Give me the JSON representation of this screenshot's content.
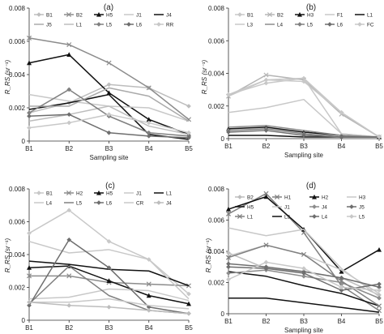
{
  "figure": {
    "x_axis_label": "Sampling site",
    "y_axis_label": "R_RS (sr⁻¹)"
  },
  "chart_data": [
    {
      "panel": "(a)",
      "type": "line",
      "categories": [
        "B1",
        "B2",
        "B3",
        "B4",
        "B5"
      ],
      "xlabel": "Sampling site",
      "ylabel": "R_RS (sr⁻¹)",
      "ylim": [
        0,
        0.008
      ],
      "yticks": [
        "0",
        "0.002",
        "0.004",
        "0.006",
        "0.008"
      ],
      "legend_placement": "top",
      "series": [
        {
          "name": "B1",
          "values": [
            0.0017,
            0.0023,
            0.0034,
            0.0032,
            0.0021
          ],
          "color": "#bdbdbd",
          "marker": "diamond"
        },
        {
          "name": "B2",
          "values": [
            0.0062,
            0.0058,
            0.0047,
            0.0032,
            0.0013
          ],
          "color": "#8c8c8c",
          "marker": "x"
        },
        {
          "name": "H5",
          "values": [
            0.0047,
            0.0052,
            0.0029,
            0.0013,
            0.0004
          ],
          "color": "#111111",
          "marker": "triangle"
        },
        {
          "name": "J1",
          "values": [
            0.0028,
            0.0024,
            0.0021,
            0.002,
            0.0012
          ],
          "color": "#c8c8c8",
          "marker": "none"
        },
        {
          "name": "J4",
          "values": [
            0.0019,
            0.0023,
            0.0028,
            0.0004,
            0.0001
          ],
          "color": "#111111",
          "marker": "none"
        },
        {
          "name": "J5",
          "values": [
            0.0021,
            0.0021,
            0.0032,
            0.0027,
            0.0012
          ],
          "color": "#aaaaaa",
          "marker": "none"
        },
        {
          "name": "L1",
          "values": [
            0.0012,
            0.0016,
            0.0021,
            0.0009,
            0.0004
          ],
          "color": "#bdbdbd",
          "marker": "none"
        },
        {
          "name": "L5",
          "values": [
            0.0017,
            0.0031,
            0.0015,
            0.0005,
            0.0003
          ],
          "color": "#808080",
          "marker": "diamond"
        },
        {
          "name": "L6",
          "values": [
            0.0015,
            0.0016,
            0.0005,
            0.0003,
            0.0002
          ],
          "color": "#6e6e6e",
          "marker": "diamond"
        },
        {
          "name": "RR",
          "values": [
            0.0008,
            0.0011,
            0.0016,
            0.0011,
            0.0005
          ],
          "color": "#c8c8c8",
          "marker": "diamond"
        }
      ],
      "legend_rows": [
        [
          {
            "name": "B1",
            "marker": "diamond",
            "color": "#bdbdbd"
          },
          {
            "name": "B2",
            "marker": "x",
            "color": "#8c8c8c"
          },
          {
            "name": "H5",
            "marker": "triangle",
            "color": "#111111"
          },
          {
            "name": "J1",
            "marker": "none",
            "color": "#c8c8c8"
          },
          {
            "name": "J4",
            "marker": "none",
            "color": "#111111"
          }
        ],
        [
          {
            "name": "J5",
            "marker": "none",
            "color": "#aaaaaa"
          },
          {
            "name": "L1",
            "marker": "none",
            "color": "#bdbdbd"
          },
          {
            "name": "L5",
            "marker": "diamond",
            "color": "#808080"
          },
          {
            "name": "L6",
            "marker": "diamond",
            "color": "#6e6e6e"
          },
          {
            "name": "RR",
            "marker": "diamond",
            "color": "#c8c8c8"
          }
        ]
      ]
    },
    {
      "panel": "(b)",
      "type": "line",
      "categories": [
        "B1",
        "B2",
        "B3",
        "B4",
        "B5"
      ],
      "xlabel": "Sampling site",
      "ylabel": "R_RS (sr⁻¹)",
      "ylim": [
        0,
        0.008
      ],
      "yticks": [
        "0",
        "0.002",
        "0.004",
        "0.006",
        "0.008"
      ],
      "legend_placement": "top",
      "series": [
        {
          "name": "B1",
          "values": [
            0.0027,
            0.0034,
            0.0037,
            0.0016,
            0.0001
          ],
          "color": "#c8c8c8",
          "marker": "diamond"
        },
        {
          "name": "B2",
          "values": [
            0.0026,
            0.0039,
            0.0036,
            0.0015,
            0.0001
          ],
          "color": "#b5b5b5",
          "marker": "x"
        },
        {
          "name": "H3",
          "values": [
            0.0006,
            0.0007,
            0.0004,
            0.0002,
            0.0001
          ],
          "color": "#111111",
          "marker": "triangle"
        },
        {
          "name": "F1",
          "values": [
            0.0016,
            0.0019,
            0.0024,
            0.0003,
            0.0001
          ],
          "color": "#c8c8c8",
          "marker": "none"
        },
        {
          "name": "L1",
          "values": [
            0.0002,
            0.0002,
            0.0001,
            0.0001,
            0.0001
          ],
          "color": "#111111",
          "marker": "none"
        },
        {
          "name": "L3",
          "values": [
            0.0026,
            0.0036,
            0.0037,
            0.0003,
            0.0001
          ],
          "color": "#c8c8c8",
          "marker": "none"
        },
        {
          "name": "L4",
          "values": [
            0.0007,
            0.0008,
            0.0005,
            0.0002,
            0.0001
          ],
          "color": "#8c8c8c",
          "marker": "none"
        },
        {
          "name": "L5",
          "values": [
            0.0005,
            0.0006,
            0.0003,
            0.0001,
            0.0001
          ],
          "color": "#808080",
          "marker": "diamond"
        },
        {
          "name": "L6",
          "values": [
            0.0004,
            0.0005,
            0.0002,
            0.0001,
            0.0001
          ],
          "color": "#6e6e6e",
          "marker": "diamond"
        },
        {
          "name": "FC",
          "values": [
            0.0027,
            0.0036,
            0.0035,
            0.0016,
            0.0001
          ],
          "color": "#c8c8c8",
          "marker": "diamond"
        }
      ],
      "legend_rows": [
        [
          {
            "name": "B1",
            "marker": "diamond",
            "color": "#c8c8c8"
          },
          {
            "name": "B2",
            "marker": "x",
            "color": "#b5b5b5"
          },
          {
            "name": "H3",
            "marker": "triangle",
            "color": "#111111"
          },
          {
            "name": "F1",
            "marker": "none",
            "color": "#c8c8c8"
          },
          {
            "name": "L1",
            "marker": "none",
            "color": "#111111"
          }
        ],
        [
          {
            "name": "L3",
            "marker": "none",
            "color": "#c8c8c8"
          },
          {
            "name": "L4",
            "marker": "none",
            "color": "#8c8c8c"
          },
          {
            "name": "L5",
            "marker": "diamond",
            "color": "#808080"
          },
          {
            "name": "L6",
            "marker": "diamond",
            "color": "#6e6e6e"
          },
          {
            "name": "FC",
            "marker": "diamond",
            "color": "#c8c8c8"
          }
        ]
      ]
    },
    {
      "panel": "(c)",
      "type": "line",
      "categories": [
        "B1",
        "B2",
        "B3",
        "B4",
        "B5"
      ],
      "xlabel": "Sampling site",
      "ylabel": "R_RS (sr⁻¹)",
      "ylim": [
        0,
        0.008
      ],
      "yticks": [
        "0",
        "0.002",
        "0.004",
        "0.006",
        "0.008"
      ],
      "legend_placement": "top",
      "series": [
        {
          "name": "B1",
          "values": [
            0.0053,
            0.0067,
            0.0048,
            0.0037,
            0.0016
          ],
          "color": "#c8c8c8",
          "marker": "diamond"
        },
        {
          "name": "H2",
          "values": [
            0.0027,
            0.0027,
            0.0023,
            0.0022,
            0.0021
          ],
          "color": "#8c8c8c",
          "marker": "x"
        },
        {
          "name": "H5",
          "values": [
            0.0032,
            0.0033,
            0.0024,
            0.0015,
            0.001
          ],
          "color": "#111111",
          "marker": "triangle"
        },
        {
          "name": "J1",
          "values": [
            0.0013,
            0.0014,
            0.0019,
            0.0018,
            0.0012
          ],
          "color": "#c8c8c8",
          "marker": "none"
        },
        {
          "name": "L1",
          "values": [
            0.0036,
            0.0034,
            0.0031,
            0.003,
            0.0021
          ],
          "color": "#111111",
          "marker": "none"
        },
        {
          "name": "L4",
          "values": [
            0.0048,
            0.0041,
            0.0043,
            0.0037,
            0.0013
          ],
          "color": "#c8c8c8",
          "marker": "none"
        },
        {
          "name": "L5",
          "values": [
            0.001,
            0.0033,
            0.0015,
            0.0006,
            0.0004
          ],
          "color": "#808080",
          "marker": "none"
        },
        {
          "name": "L6",
          "values": [
            0.0009,
            0.0049,
            0.0032,
            0.0008,
            0.0004
          ],
          "color": "#6e6e6e",
          "marker": "diamond"
        },
        {
          "name": "CR",
          "values": [
            0.0011,
            0.0011,
            0.0013,
            0.0009,
            0.0007
          ],
          "color": "#c8c8c8",
          "marker": "none"
        },
        {
          "name": "J4",
          "values": [
            0.0011,
            0.0009,
            0.0008,
            0.0006,
            0.0004
          ],
          "color": "#bdbdbd",
          "marker": "diamond"
        }
      ],
      "legend_rows": [
        [
          {
            "name": "B1",
            "marker": "diamond",
            "color": "#c8c8c8"
          },
          {
            "name": "H2",
            "marker": "x",
            "color": "#8c8c8c"
          },
          {
            "name": "H5",
            "marker": "triangle",
            "color": "#111111"
          },
          {
            "name": "J1",
            "marker": "none",
            "color": "#c8c8c8"
          },
          {
            "name": "L1",
            "marker": "none",
            "color": "#111111"
          }
        ],
        [
          {
            "name": "L4",
            "marker": "none",
            "color": "#c8c8c8"
          },
          {
            "name": "L5",
            "marker": "none",
            "color": "#808080"
          },
          {
            "name": "L6",
            "marker": "diamond",
            "color": "#6e6e6e"
          },
          {
            "name": "CR",
            "marker": "none",
            "color": "#c8c8c8"
          },
          {
            "name": "J4",
            "marker": "diamond",
            "color": "#bdbdbd"
          }
        ]
      ]
    },
    {
      "panel": "(d)",
      "type": "line",
      "categories": [
        "B1",
        "B2",
        "B3",
        "B4",
        "B5"
      ],
      "xlabel": "Sampling site",
      "ylabel": "R_RS (sr⁻¹)",
      "ylim": [
        0,
        0.008
      ],
      "yticks": [
        "0",
        "0.002",
        "0.004",
        "0.006",
        "0.008"
      ],
      "legend_placement": "top",
      "series": [
        {
          "name": "B2",
          "values": [
            0.0039,
            0.0029,
            0.0027,
            0.0023,
            0.0012
          ],
          "color": "#bdbdbd",
          "marker": "diamond"
        },
        {
          "name": "H1",
          "values": [
            0.0064,
            0.0077,
            0.0052,
            0.0018,
            0.0002
          ],
          "color": "#808080",
          "marker": "x"
        },
        {
          "name": "H2",
          "values": [
            0.0067,
            0.0075,
            0.0054,
            0.0027,
            0.0041
          ],
          "color": "#111111",
          "marker": "triangle"
        },
        {
          "name": "H3",
          "values": [
            0.0037,
            0.0044,
            0.0038,
            0.0028,
            0.0013
          ],
          "color": "#c8c8c8",
          "marker": "none"
        },
        {
          "name": "H5",
          "values": [
            0.0027,
            0.0024,
            0.0018,
            0.0013,
            0.0005
          ],
          "color": "#111111",
          "marker": "none"
        },
        {
          "name": "J1",
          "values": [
            0.0055,
            0.005,
            0.0054,
            0.0029,
            0.0011
          ],
          "color": "#c8c8c8",
          "marker": "none"
        },
        {
          "name": "J4",
          "values": [
            0.0026,
            0.0028,
            0.0024,
            0.002,
            0.001
          ],
          "color": "#8c8c8c",
          "marker": "diamond"
        },
        {
          "name": "J5",
          "values": [
            0.003,
            0.0029,
            0.0026,
            0.0015,
            0.0019
          ],
          "color": "#6e6e6e",
          "marker": "diamond"
        },
        {
          "name": "L1",
          "values": [
            0.0036,
            0.0044,
            0.0038,
            0.0021,
            0.0005
          ],
          "color": "#808080",
          "marker": "x"
        },
        {
          "name": "L3",
          "values": [
            0.001,
            0.001,
            0.0007,
            0.0004,
            0.0001
          ],
          "color": "#111111",
          "marker": "none"
        },
        {
          "name": "L4",
          "values": [
            0.0032,
            0.003,
            0.0027,
            0.0023,
            0.0017
          ],
          "color": "#6e6e6e",
          "marker": "diamond"
        },
        {
          "name": "L5",
          "values": [
            0.0022,
            0.0033,
            0.0029,
            0.0017,
            0.0015
          ],
          "color": "#c8c8c8",
          "marker": "diamond"
        }
      ],
      "legend_rows": [
        [
          {
            "name": "B2",
            "marker": "diamond",
            "color": "#bdbdbd"
          },
          {
            "name": "H1",
            "marker": "x",
            "color": "#808080"
          },
          {
            "name": "H2",
            "marker": "triangle",
            "color": "#111111"
          },
          {
            "name": "H3",
            "marker": "none",
            "color": "#c8c8c8"
          }
        ],
        [
          {
            "name": "H5",
            "marker": "none",
            "color": "#111111"
          },
          {
            "name": "J1",
            "marker": "none",
            "color": "#c8c8c8"
          },
          {
            "name": "J4",
            "marker": "diamond",
            "color": "#8c8c8c"
          },
          {
            "name": "J5",
            "marker": "diamond",
            "color": "#6e6e6e"
          }
        ],
        [
          {
            "name": "L1",
            "marker": "x",
            "color": "#808080"
          },
          {
            "name": "L3",
            "marker": "none",
            "color": "#111111"
          },
          {
            "name": "L4",
            "marker": "diamond",
            "color": "#6e6e6e"
          },
          {
            "name": "L5",
            "marker": "diamond",
            "color": "#c8c8c8"
          }
        ]
      ]
    }
  ]
}
